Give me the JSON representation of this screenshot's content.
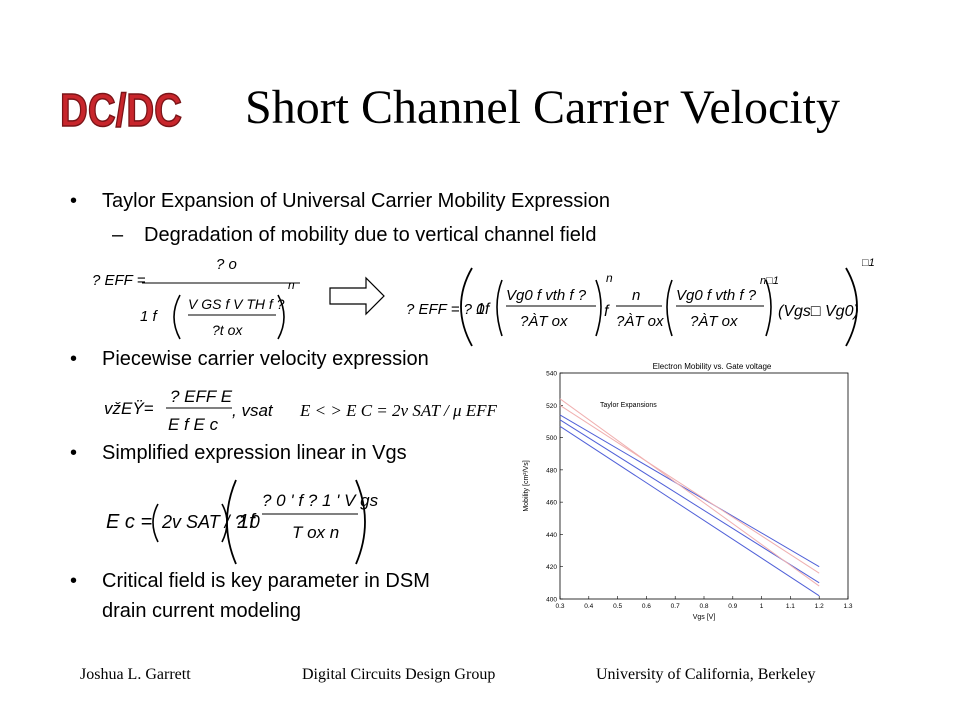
{
  "logo": {
    "text": "DC/DC",
    "color": "#c8262c"
  },
  "title": "Short Channel Carrier Velocity",
  "bullets": [
    {
      "text": "Taylor Expansion of Universal Carrier Mobility Expression"
    },
    {
      "text": "Piecewise carrier velocity expression"
    },
    {
      "text": "Simplified expression linear in Vgs"
    },
    {
      "text": "Critical field is key parameter in DSM",
      "text2": "drain current modeling"
    }
  ],
  "sub_bullet": "Degradation of mobility due to vertical channel field",
  "bullet_symbol": "•",
  "dash_symbol": "–",
  "equations": {
    "eq1": {
      "lhs": "? EFF =",
      "num": "? o",
      "den_a": "1 f",
      "den_b": "V GS f V TH f ?",
      "den_c": "?t ox",
      "pow": "n"
    },
    "arrow": "arrow-icon",
    "eq2": {
      "lhs": "? EFF = ? 0",
      "a": "1f",
      "b": "Vg0 f vth f ?",
      "c": "?ÀT ox",
      "d": "f",
      "e": "n",
      "f": "?ÀT ox",
      "g": "Vg0 f vth f ?",
      "h": "?ÀT ox",
      "i": "(Vgs□ Vg0)",
      "pow1": "n□1",
      "pow2": "□1",
      "pow3": "n"
    },
    "eq3": {
      "lhs": "vžEŸ=",
      "num": "? EFF E",
      "den": "E f E c",
      "vsat": ", vsat"
    },
    "eq4": {
      "text": "E < > E C = 2ν SAT / μ EFF"
    },
    "eq5": {
      "lhs": "E c =",
      "a": "2v SAT / ? 0",
      "b": "1f",
      "c": "? 0 ' f ? 1 ' V gs",
      "d": "T ox n"
    }
  },
  "chart_data": {
    "type": "line",
    "title": "Electron Mobility vs. Gate voltage",
    "xlabel": "Vgs [V]",
    "ylabel": "Mobility [cm²/Vs]",
    "xlim": [
      0.3,
      1.3
    ],
    "ylim": [
      400,
      540
    ],
    "xticks": [
      "0.3",
      "0.4",
      "0.5",
      "0.6",
      "0.7",
      "0.8",
      "0.9",
      "1",
      "1.1",
      "1.2",
      "1.3"
    ],
    "yticks": [
      "400",
      "420",
      "440",
      "460",
      "480",
      "500",
      "520",
      "540"
    ],
    "annotation": "Taylor Expansions",
    "grid": false,
    "series": [
      {
        "color": "#5060d8",
        "x": [
          0.3,
          1.2
        ],
        "y": [
          514,
          420
        ]
      },
      {
        "color": "#5060d8",
        "x": [
          0.3,
          1.2
        ],
        "y": [
          511,
          410
        ]
      },
      {
        "color": "#5060d8",
        "x": [
          0.3,
          1.2
        ],
        "y": [
          507,
          402
        ]
      },
      {
        "color": "#f0b0b0",
        "x": [
          0.3,
          1.2
        ],
        "y": [
          524,
          408
        ]
      },
      {
        "color": "#f0b0b0",
        "x": [
          0.3,
          1.2
        ],
        "y": [
          520,
          416
        ]
      }
    ]
  },
  "footer": {
    "left": "Joshua L. Garrett",
    "center": "Digital Circuits Design Group",
    "right": "University of California, Berkeley"
  }
}
